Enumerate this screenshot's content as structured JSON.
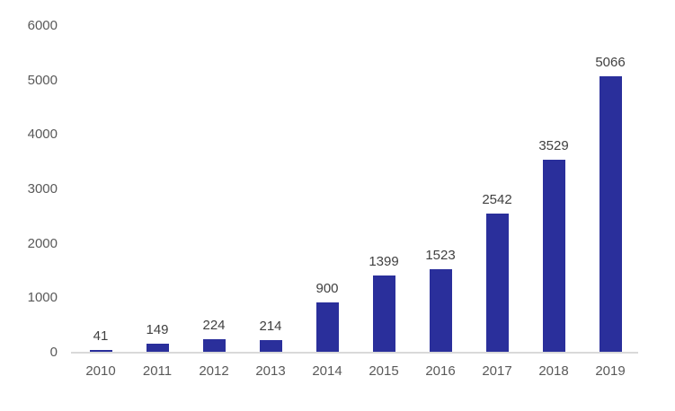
{
  "chart_data": {
    "type": "bar",
    "categories": [
      "2010",
      "2011",
      "2012",
      "2013",
      "2014",
      "2015",
      "2016",
      "2017",
      "2018",
      "2019"
    ],
    "values": [
      41,
      149,
      224,
      214,
      900,
      1399,
      1523,
      2542,
      3529,
      5066
    ],
    "value_labels": [
      "41",
      "149",
      "224",
      "214",
      "900",
      "1399",
      "1523",
      "2542",
      "3529",
      "5066"
    ],
    "title": "",
    "xlabel": "",
    "ylabel": "",
    "ylim": [
      0,
      6000
    ],
    "yticks": [
      0,
      1000,
      2000,
      3000,
      4000,
      5000,
      6000
    ],
    "ytick_labels": [
      "0",
      "1000",
      "2000",
      "3000",
      "4000",
      "5000",
      "6000"
    ],
    "grid": false,
    "legend": false,
    "data_labels_shown": true,
    "colors": {
      "bar": "#2A2F9B",
      "axis_line": "#D9D9D9",
      "tick_label": "#595959",
      "value_label": "#404040",
      "background": "#FFFFFF"
    }
  }
}
